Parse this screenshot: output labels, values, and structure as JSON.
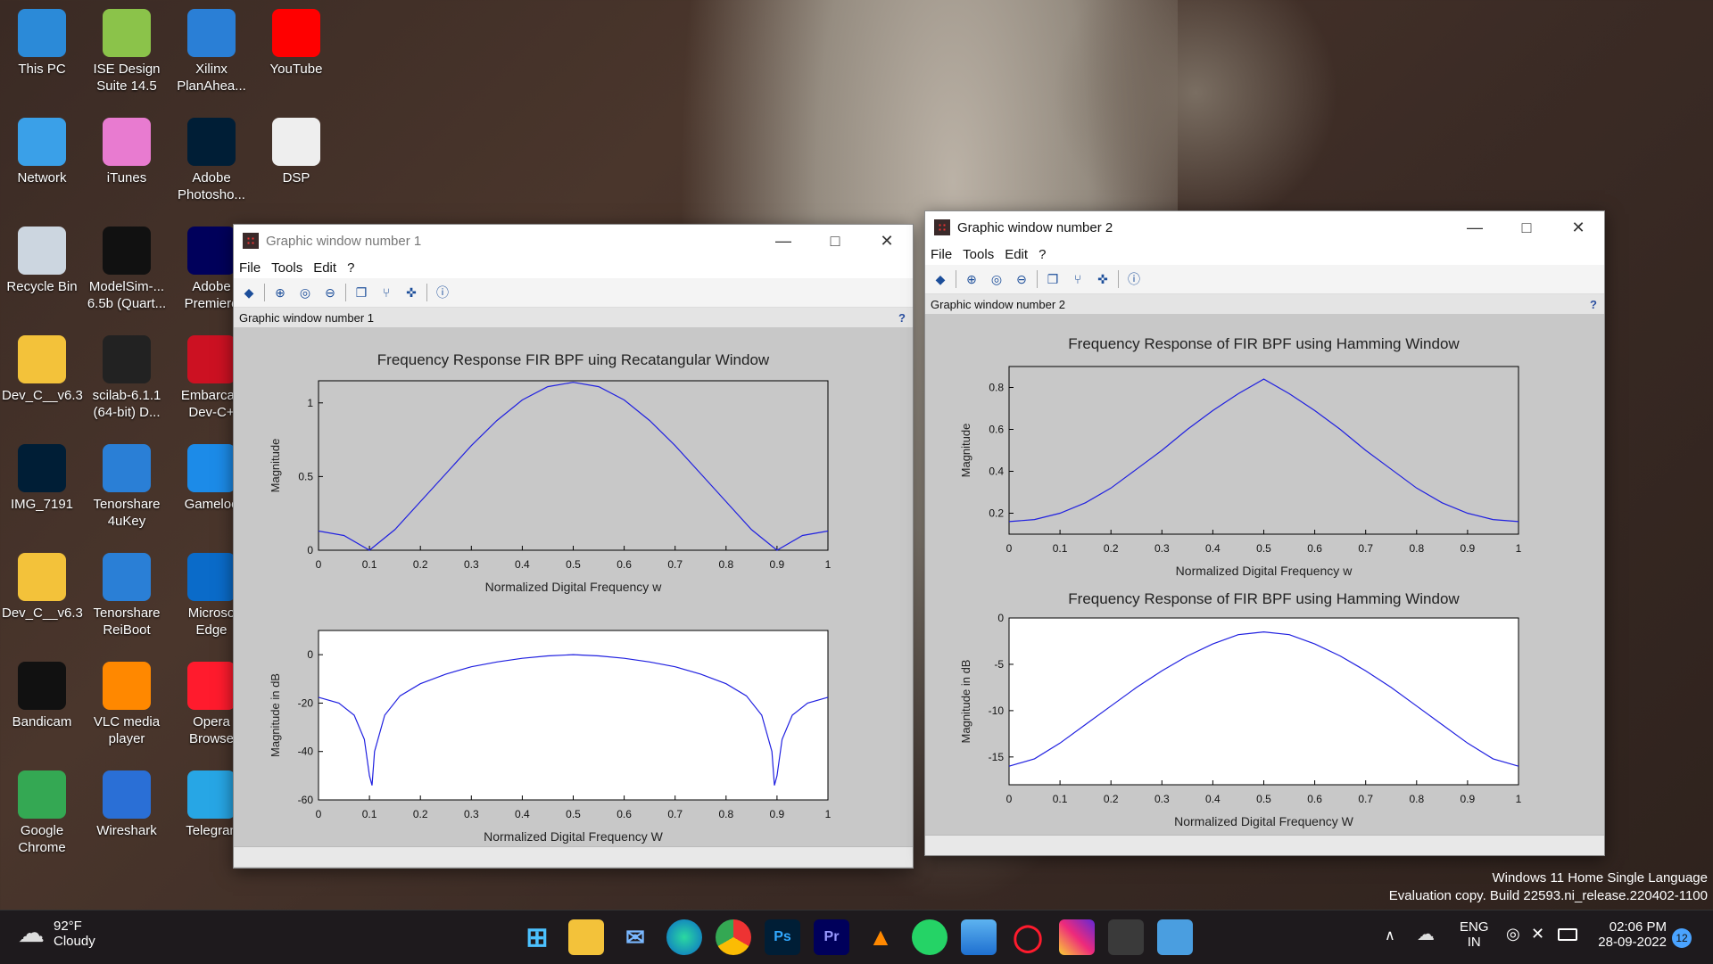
{
  "desktop": {
    "icons": [
      {
        "label": "This PC"
      },
      {
        "label": "ISE Design Suite 14.5"
      },
      {
        "label": "Xilinx PlanAhea..."
      },
      {
        "label": "YouTube"
      },
      {
        "label": "Network"
      },
      {
        "label": "iTunes"
      },
      {
        "label": "Adobe Photosho..."
      },
      {
        "label": "DSP"
      },
      {
        "label": "Recycle Bin"
      },
      {
        "label": "ModelSim-... 6.5b (Quart..."
      },
      {
        "label": "Adobe Premiere"
      },
      {
        "label": "Dev_C__v6.3"
      },
      {
        "label": "scilab-6.1.1 (64-bit) D..."
      },
      {
        "label": "Embarcad Dev-C+"
      },
      {
        "label": "IMG_7191"
      },
      {
        "label": "Tenorshare 4uKey"
      },
      {
        "label": "Gameloo"
      },
      {
        "label": "Dev_C__v6.3"
      },
      {
        "label": "Tenorshare ReiBoot"
      },
      {
        "label": "Microso Edge"
      },
      {
        "label": "Bandicam"
      },
      {
        "label": "VLC media player"
      },
      {
        "label": "Opera Browse"
      },
      {
        "label": "Google Chrome"
      },
      {
        "label": "Wireshark"
      },
      {
        "label": "Telegran"
      }
    ]
  },
  "window1": {
    "title": "Graphic window number 1",
    "menu": [
      "File",
      "Tools",
      "Edit",
      "?"
    ],
    "subtitle": "Graphic window number 1",
    "help": "?"
  },
  "window2": {
    "title": "Graphic window number 2",
    "menu": [
      "File",
      "Tools",
      "Edit",
      "?"
    ],
    "subtitle": "Graphic window number 2",
    "help": "?"
  },
  "chart_data": [
    {
      "type": "line",
      "title": "Frequency Response FIR BPF uing Recatangular Window",
      "xlabel": "Normalized Digital Frequency w",
      "ylabel": "Magnitude",
      "xlim": [
        0,
        1
      ],
      "ylim": [
        0,
        1.15
      ],
      "xticks": [
        "0",
        "0.1",
        "0.2",
        "0.3",
        "0.4",
        "0.5",
        "0.6",
        "0.7",
        "0.8",
        "0.9",
        "1"
      ],
      "yticks": [
        "0",
        "0.5",
        "1"
      ],
      "x": [
        0,
        0.05,
        0.1,
        0.15,
        0.2,
        0.25,
        0.3,
        0.35,
        0.4,
        0.45,
        0.5,
        0.55,
        0.6,
        0.65,
        0.7,
        0.75,
        0.8,
        0.85,
        0.9,
        0.95,
        1
      ],
      "series": [
        {
          "values": [
            0.13,
            0.1,
            0.0,
            0.14,
            0.33,
            0.52,
            0.71,
            0.88,
            1.02,
            1.11,
            1.14,
            1.11,
            1.02,
            0.88,
            0.71,
            0.52,
            0.33,
            0.14,
            0.0,
            0.1,
            0.13
          ]
        }
      ],
      "background": "#c8c8c8",
      "color": "#2020e0"
    },
    {
      "type": "line",
      "title": "",
      "xlabel": "Normalized Digital Frequency W",
      "ylabel": "Magnitude in dB",
      "xlim": [
        0,
        1
      ],
      "ylim": [
        -60,
        10
      ],
      "xticks": [
        "0",
        "0.1",
        "0.2",
        "0.3",
        "0.4",
        "0.5",
        "0.6",
        "0.7",
        "0.8",
        "0.9",
        "1"
      ],
      "yticks": [
        "-60",
        "-40",
        "-20",
        "0"
      ],
      "x": [
        0,
        0.04,
        0.07,
        0.09,
        0.1,
        0.105,
        0.11,
        0.13,
        0.16,
        0.2,
        0.25,
        0.3,
        0.35,
        0.4,
        0.45,
        0.5,
        0.55,
        0.6,
        0.65,
        0.7,
        0.75,
        0.8,
        0.84,
        0.87,
        0.89,
        0.895,
        0.9,
        0.91,
        0.93,
        0.96,
        1
      ],
      "series": [
        {
          "values": [
            -17.6,
            -20,
            -25,
            -35,
            -50,
            -54,
            -40,
            -25,
            -17,
            -12,
            -8,
            -5,
            -3,
            -1.5,
            -0.5,
            0,
            -0.5,
            -1.5,
            -3,
            -5,
            -8,
            -12,
            -17,
            -25,
            -40,
            -54,
            -50,
            -35,
            -25,
            -20,
            -17.6
          ]
        }
      ],
      "background": "#ffffff",
      "color": "#2020e0"
    },
    {
      "type": "line",
      "title": "Frequency Response of FIR BPF using Hamming Window",
      "xlabel": "Normalized Digital Frequency w",
      "ylabel": "Magnitude",
      "xlim": [
        0,
        1
      ],
      "ylim": [
        0.1,
        0.9
      ],
      "xticks": [
        "0",
        "0.1",
        "0.2",
        "0.3",
        "0.4",
        "0.5",
        "0.6",
        "0.7",
        "0.8",
        "0.9",
        "1"
      ],
      "yticks": [
        "0.2",
        "0.4",
        "0.6",
        "0.8"
      ],
      "x": [
        0,
        0.05,
        0.1,
        0.15,
        0.2,
        0.25,
        0.3,
        0.35,
        0.4,
        0.45,
        0.5,
        0.55,
        0.6,
        0.65,
        0.7,
        0.75,
        0.8,
        0.85,
        0.9,
        0.95,
        1
      ],
      "series": [
        {
          "values": [
            0.16,
            0.17,
            0.2,
            0.25,
            0.32,
            0.41,
            0.5,
            0.6,
            0.69,
            0.77,
            0.84,
            0.77,
            0.69,
            0.6,
            0.5,
            0.41,
            0.32,
            0.25,
            0.2,
            0.17,
            0.16
          ]
        }
      ],
      "background": "#c8c8c8",
      "color": "#2020e0"
    },
    {
      "type": "line",
      "title": "Frequency Response of FIR BPF using Hamming Window",
      "xlabel": "Normalized Digital Frequency W",
      "ylabel": "Magnitude in dB",
      "xlim": [
        0,
        1
      ],
      "ylim": [
        -18,
        0
      ],
      "xticks": [
        "0",
        "0.1",
        "0.2",
        "0.3",
        "0.4",
        "0.5",
        "0.6",
        "0.7",
        "0.8",
        "0.9",
        "1"
      ],
      "yticks": [
        "-15",
        "-10",
        "-5",
        "0"
      ],
      "x": [
        0,
        0.05,
        0.1,
        0.15,
        0.2,
        0.25,
        0.3,
        0.35,
        0.4,
        0.45,
        0.5,
        0.55,
        0.6,
        0.65,
        0.7,
        0.75,
        0.8,
        0.85,
        0.9,
        0.95,
        1
      ],
      "series": [
        {
          "values": [
            -16,
            -15.2,
            -13.5,
            -11.5,
            -9.5,
            -7.5,
            -5.7,
            -4.1,
            -2.8,
            -1.8,
            -1.5,
            -1.8,
            -2.8,
            -4.1,
            -5.7,
            -7.5,
            -9.5,
            -11.5,
            -13.5,
            -15.2,
            -16
          ]
        }
      ],
      "background": "#ffffff",
      "color": "#2020e0"
    }
  ],
  "taskbar": {
    "weather_temp": "92°F",
    "weather_text": "Cloudy",
    "lang1": "ENG",
    "lang2": "IN",
    "time": "02:06 PM",
    "date": "28-09-2022",
    "notif_count": "12"
  },
  "watermark": {
    "line1": "Windows 11 Home Single Language",
    "line2": "Evaluation copy. Build 22593.ni_release.220402-1100"
  }
}
